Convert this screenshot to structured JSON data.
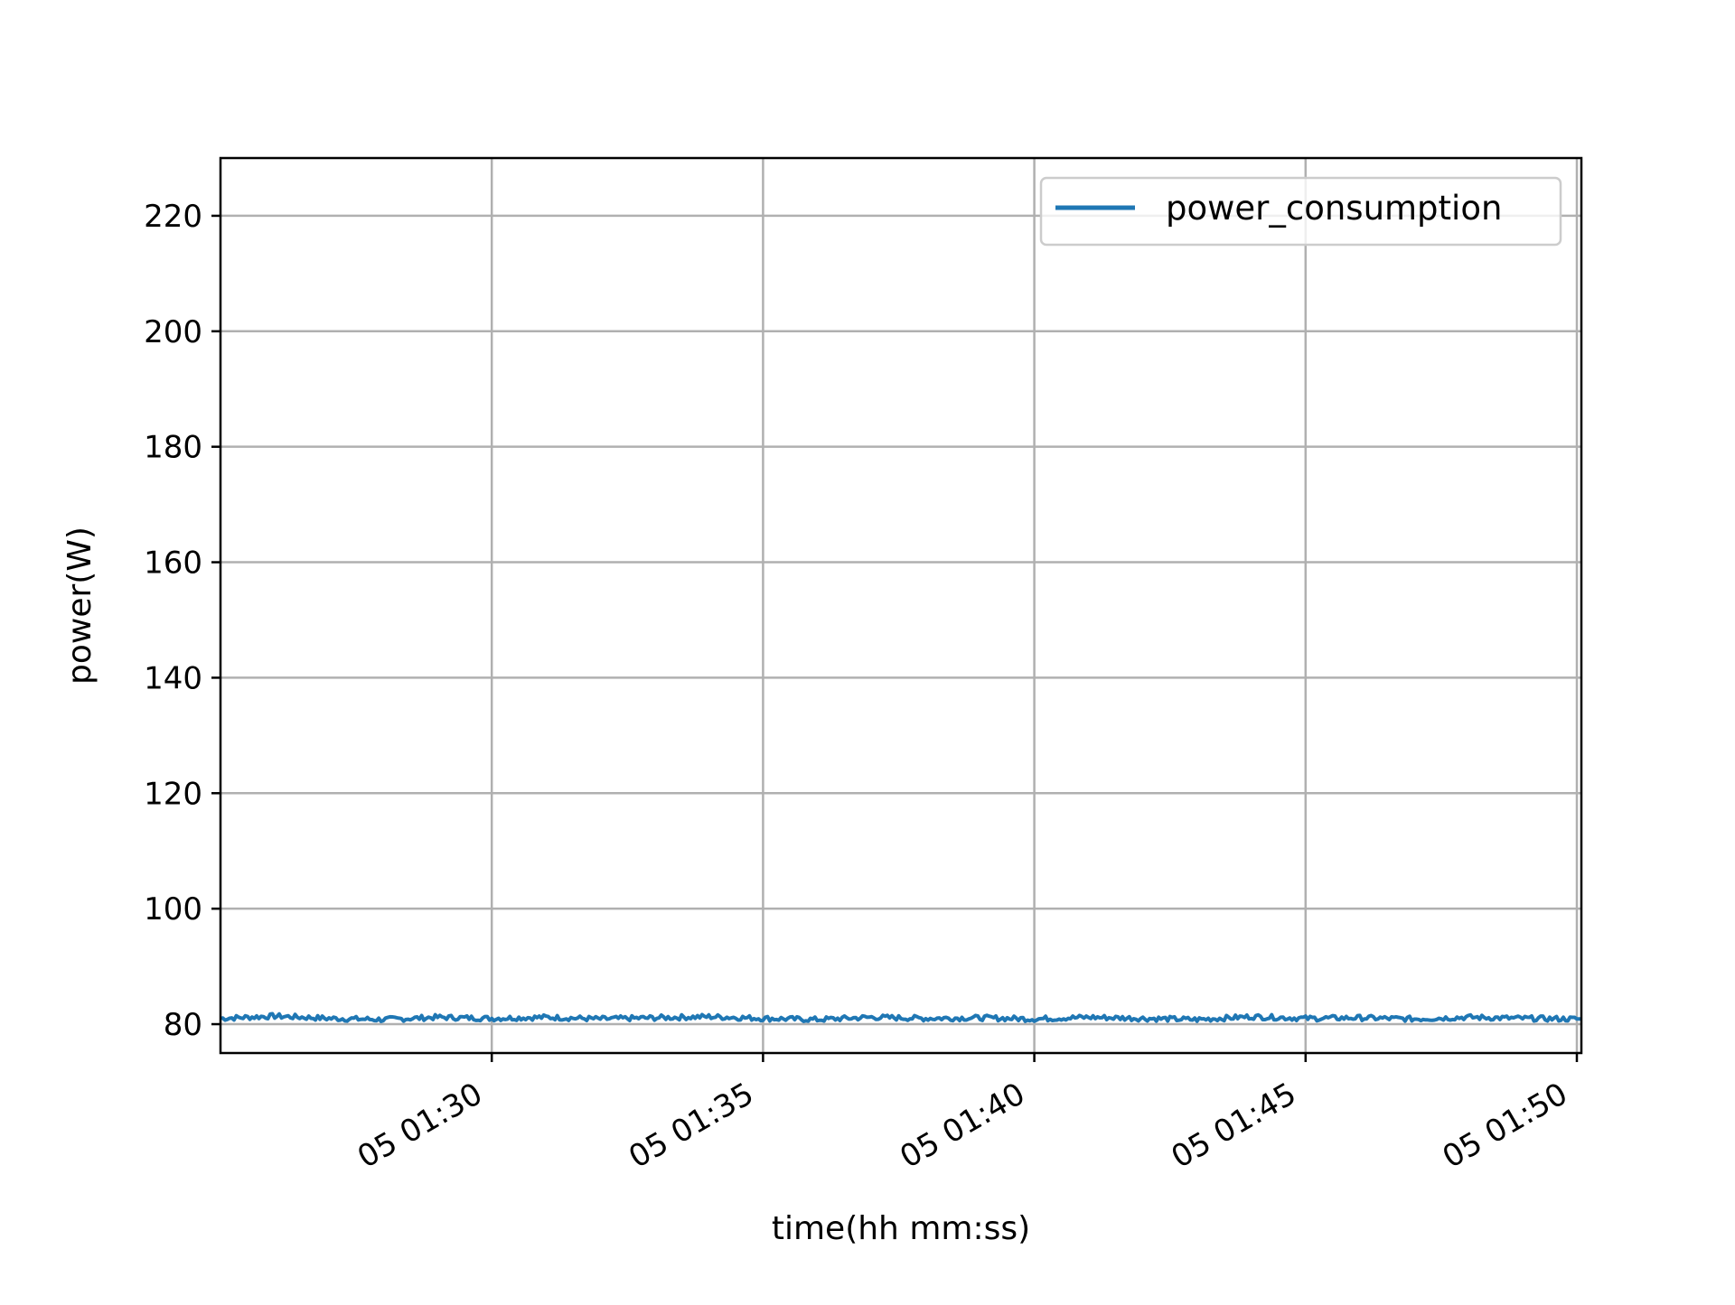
{
  "chart_data": {
    "type": "line",
    "title": "",
    "xlabel": "time(hh mm:ss)",
    "ylabel": "power(W)",
    "x_axis": "time",
    "xlim": [
      "05 01:25:00",
      "05 01:50:05"
    ],
    "ylim": [
      75,
      230
    ],
    "grid": true,
    "legend_position": "top-right",
    "x_ticks": [
      "05 01:30",
      "05 01:35",
      "05 01:40",
      "05 01:45",
      "05 01:50"
    ],
    "y_ticks": [
      80,
      100,
      120,
      140,
      160,
      180,
      200,
      220
    ],
    "series": [
      {
        "name": "power_consumption",
        "color": "#1f77b4",
        "x": [
          "05 01:25:00",
          "05 01:26:00",
          "05 01:27:00",
          "05 01:28:00",
          "05 01:29:00",
          "05 01:30:00",
          "05 01:31:00",
          "05 01:32:00",
          "05 01:33:00",
          "05 01:34:00",
          "05 01:35:00",
          "05 01:36:00",
          "05 01:37:00",
          "05 01:38:00",
          "05 01:39:00",
          "05 01:40:00",
          "05 01:41:00",
          "05 01:42:00",
          "05 01:43:00",
          "05 01:44:00",
          "05 01:45:00",
          "05 01:46:00",
          "05 01:47:00",
          "05 01:48:00",
          "05 01:49:00",
          "05 01:50:00"
        ],
        "y": [
          81,
          81.4,
          81,
          80.8,
          81.2,
          81,
          81.2,
          80.9,
          81.1,
          81.3,
          81,
          80.8,
          81.2,
          81,
          81.1,
          80.9,
          81.2,
          81,
          80.8,
          81.3,
          81,
          81.1,
          80.9,
          81.2,
          81,
          80.9
        ]
      }
    ]
  }
}
